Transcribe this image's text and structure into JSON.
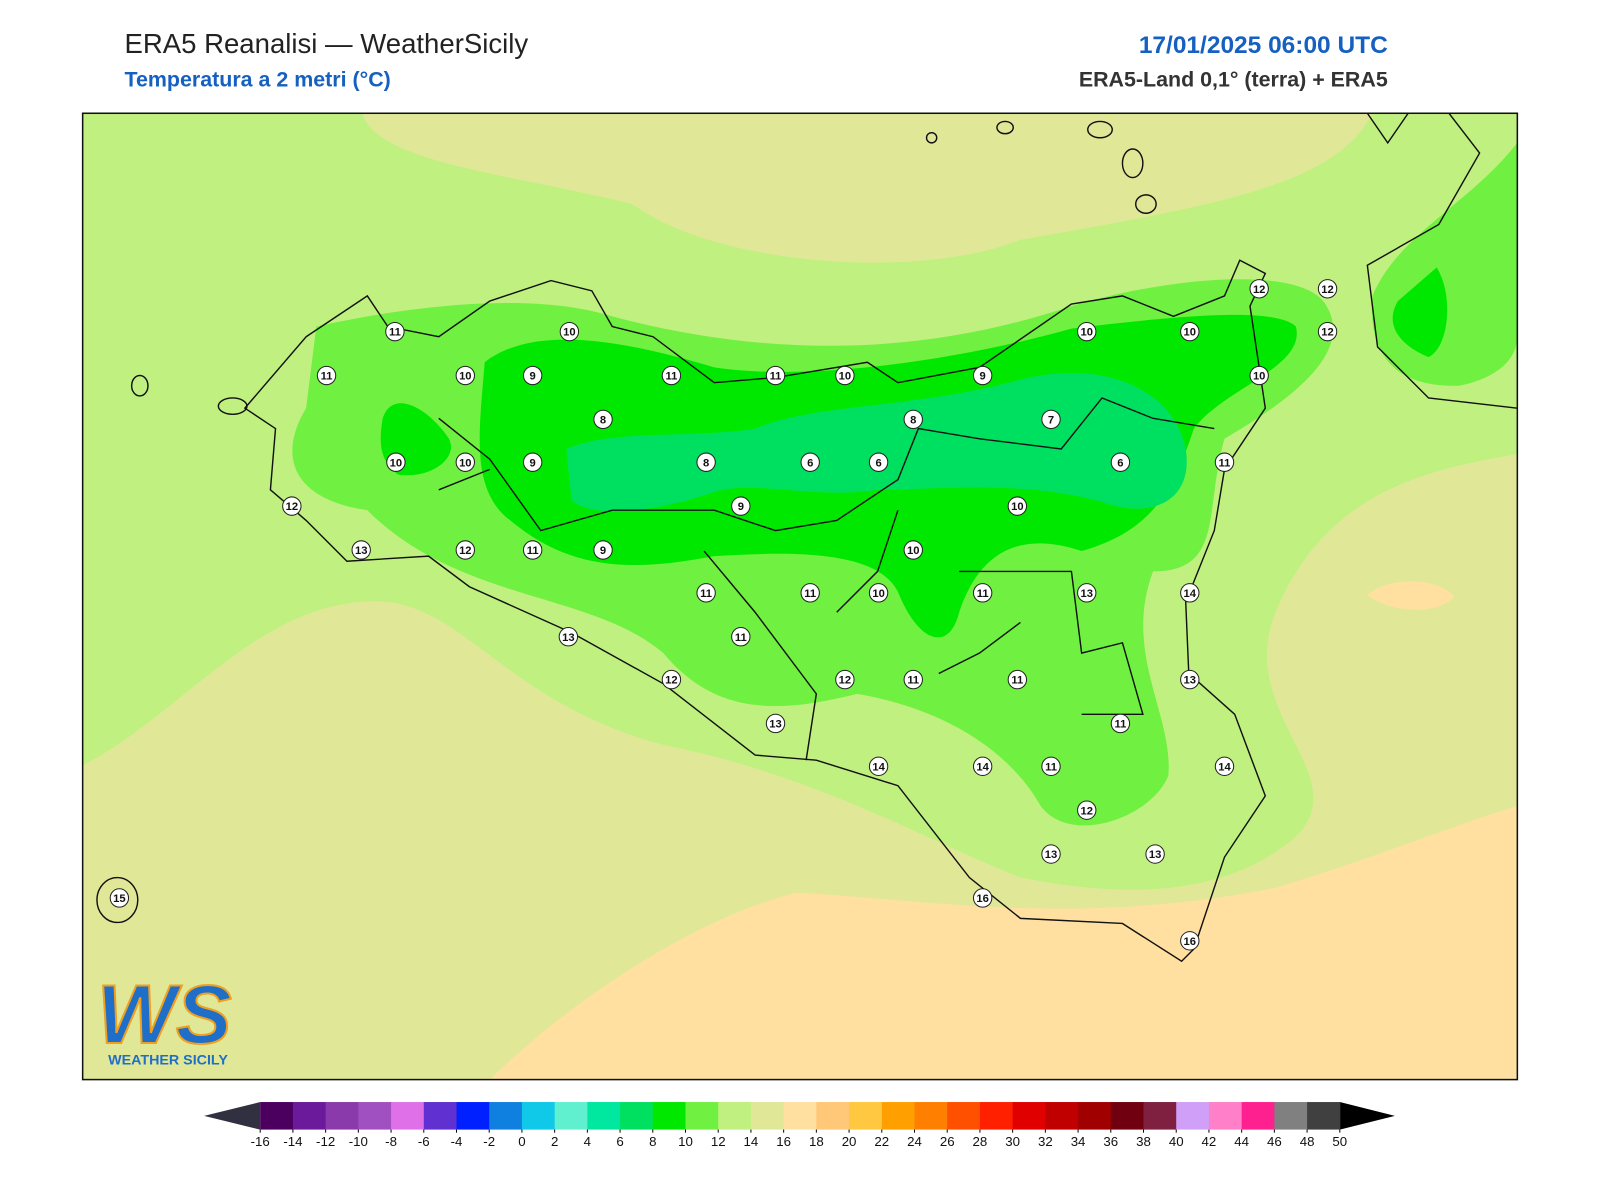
{
  "header": {
    "title": "ERA5 Reanalisi — WeatherSicily",
    "subtitle": "Temperatura a 2 metri (°C)",
    "datetime": "17/01/2025 06:00 UTC",
    "source": "ERA5-Land 0,1° (terra) + ERA5"
  },
  "stations": [
    11,
    10,
    11,
    10,
    9,
    11,
    11,
    10,
    9,
    10,
    10,
    12,
    12,
    12,
    10,
    8,
    8,
    7,
    10,
    10,
    9,
    8,
    6,
    6,
    6,
    11,
    12,
    9,
    10,
    13,
    12,
    11,
    9,
    10,
    11,
    11,
    10,
    11,
    13,
    14,
    13,
    11,
    12,
    12,
    11,
    11,
    13,
    13,
    11,
    14,
    14,
    11,
    14,
    12,
    13,
    13,
    15,
    16,
    16
  ],
  "colorbar": {
    "ticks": [
      -16,
      -14,
      -12,
      -10,
      -8,
      -6,
      -4,
      -2,
      0,
      2,
      4,
      6,
      8,
      10,
      12,
      14,
      16,
      18,
      20,
      22,
      24,
      26,
      28,
      30,
      32,
      34,
      36,
      38,
      40,
      42,
      44,
      46,
      48,
      50
    ],
    "colors": [
      "#4b0060",
      "#6a1a9a",
      "#8a3aaa",
      "#a050c0",
      "#e070e8",
      "#6030d0",
      "#0020ff",
      "#1080e0",
      "#10c8e8",
      "#60f0d0",
      "#00e8a0",
      "#00e060",
      "#00e800",
      "#70f040",
      "#c0f080",
      "#e0e898",
      "#ffe0a0",
      "#ffc878",
      "#ffc840",
      "#ffa000",
      "#ff8000",
      "#ff5000",
      "#ff2000",
      "#e00000",
      "#c00000",
      "#a00000",
      "#700010",
      "#802040",
      "#d0a0f8",
      "#ff80c8",
      "#ff2090",
      "#808080",
      "#404040"
    ],
    "under_color": "#303040",
    "over_color": "#000000"
  },
  "logo": {
    "mark": "WS",
    "name": "WEATHER SICILY"
  }
}
